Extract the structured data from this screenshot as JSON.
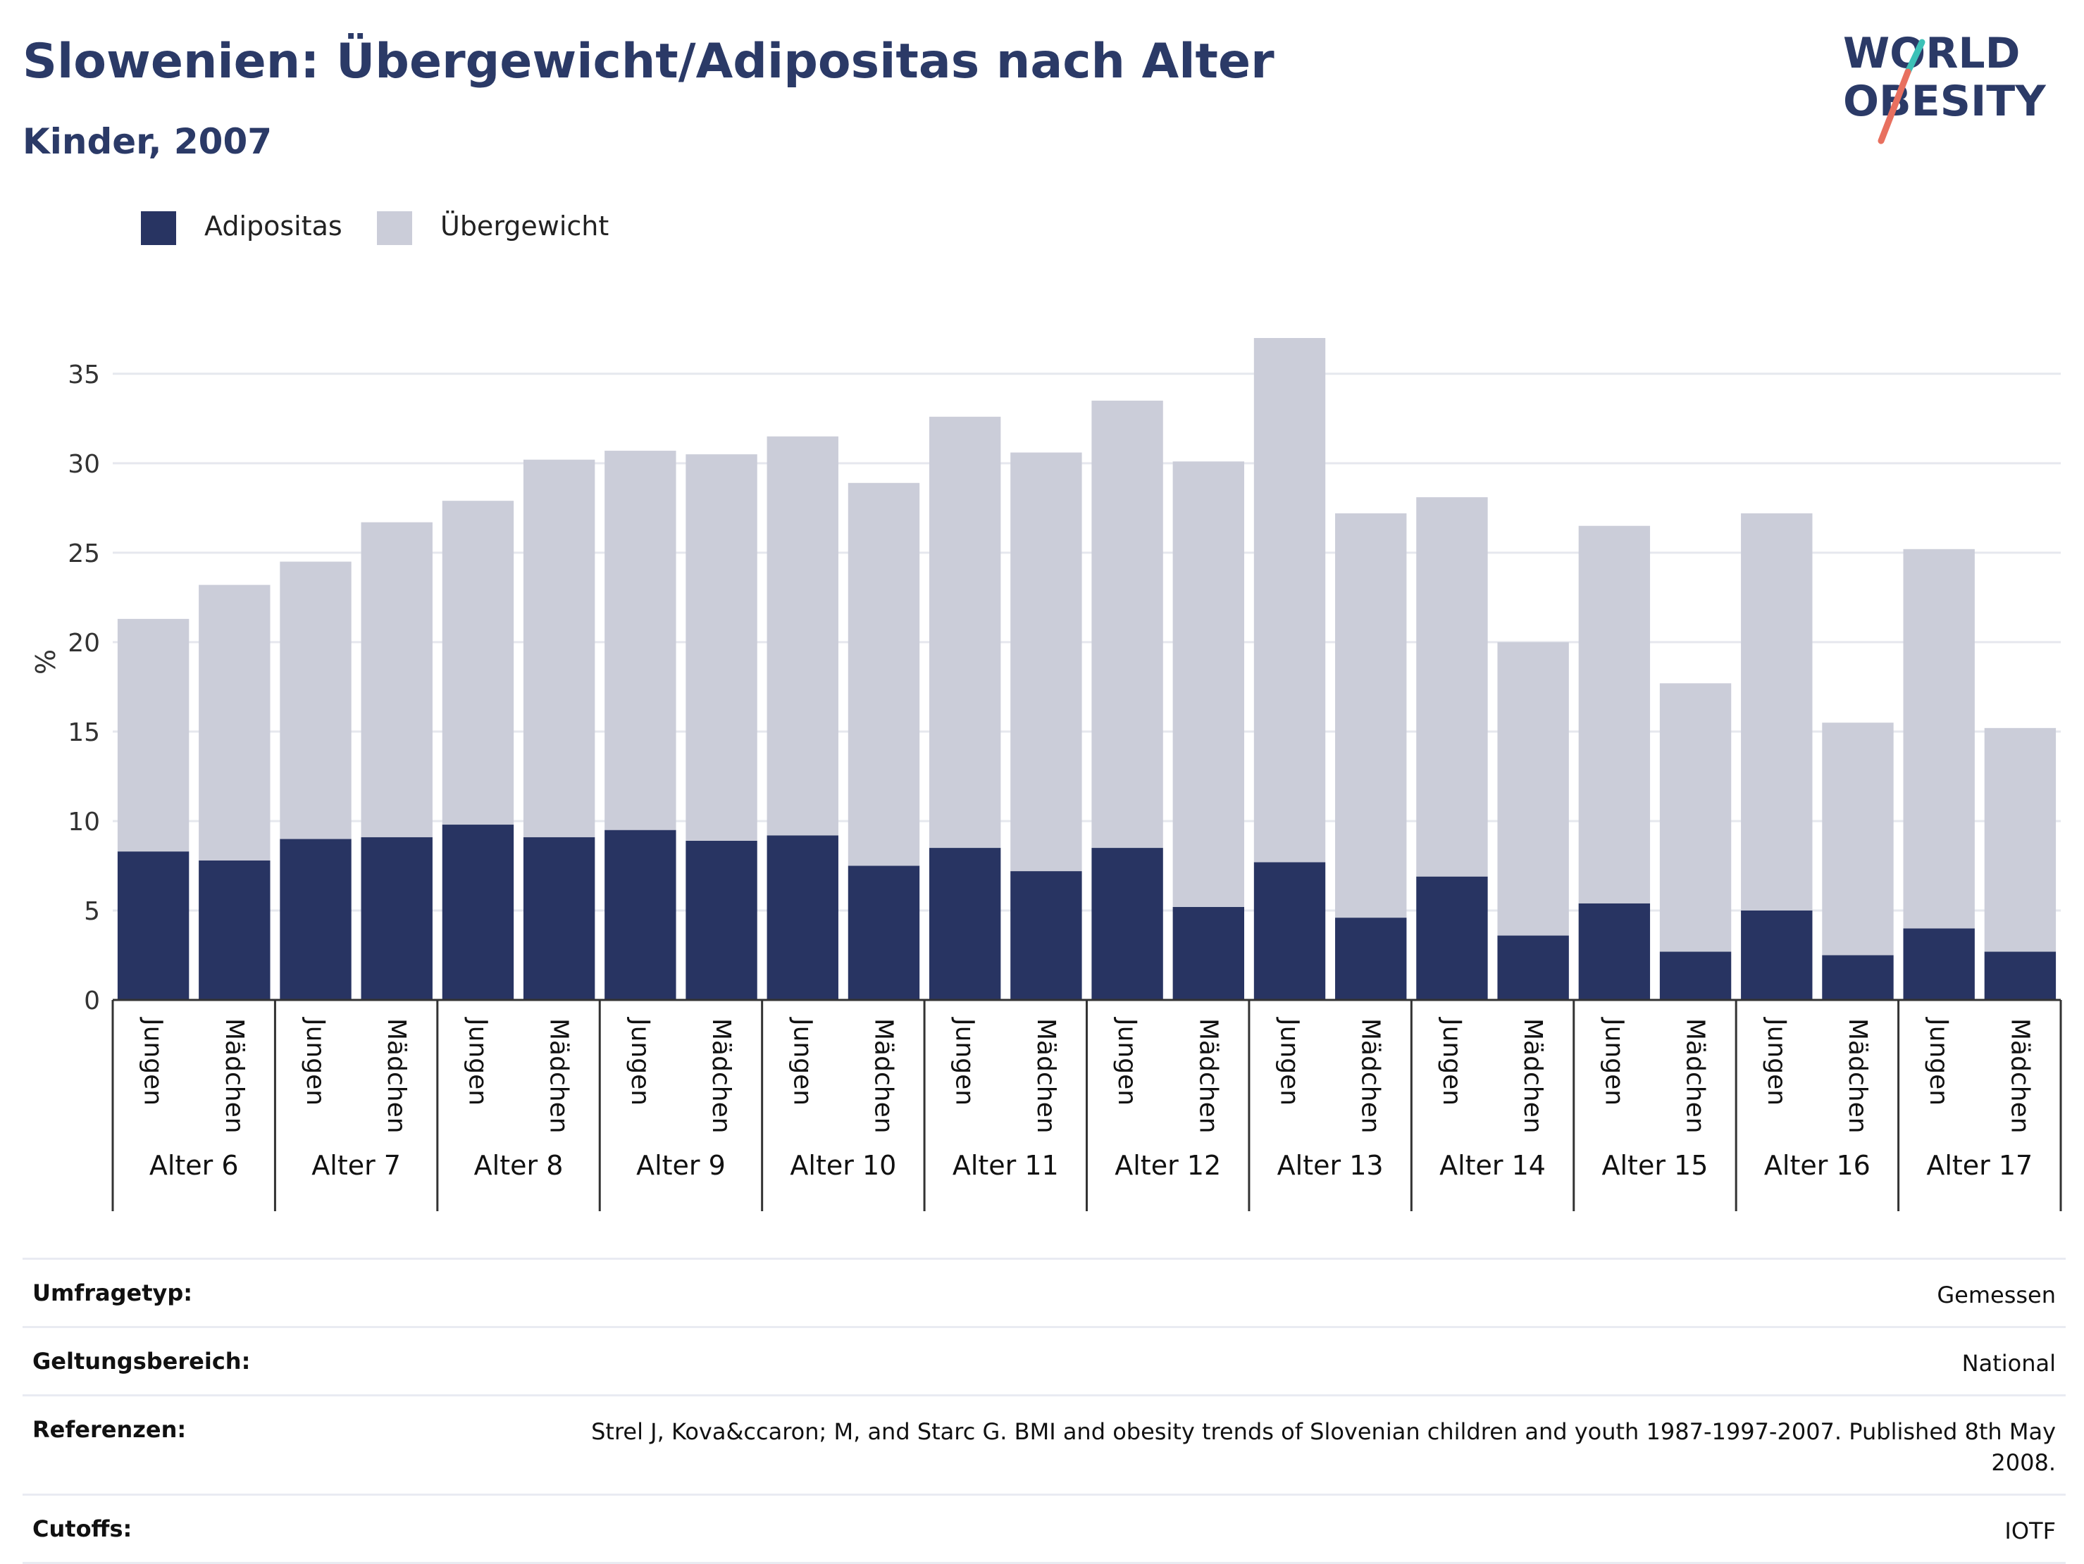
{
  "header": {
    "title": "Slowenien: Übergewicht/Adipositas nach Alter",
    "subtitle": "Kinder, 2007"
  },
  "logo": {
    "line1": "WORLD",
    "line2": "OBESITY"
  },
  "colors": {
    "adipositas": "#283462",
    "uebergewicht": "#cbcdd9",
    "accent_teal": "#3cc1b7",
    "accent_coral": "#e8705f",
    "text": "#2b3a67"
  },
  "legend": [
    {
      "label": "Adipositas",
      "color": "#283462"
    },
    {
      "label": "Übergewicht",
      "color": "#cbcdd9"
    }
  ],
  "chart_data": {
    "type": "bar",
    "stacked": true,
    "ylabel": "%",
    "ylim": [
      0,
      37
    ],
    "yticks": [
      0,
      5,
      10,
      15,
      20,
      25,
      30,
      35
    ],
    "grid": true,
    "legend_position": "top-left",
    "groups": [
      "Alter 6",
      "Alter 7",
      "Alter 8",
      "Alter 9",
      "Alter 10",
      "Alter 11",
      "Alter 12",
      "Alter 13",
      "Alter 14",
      "Alter 15",
      "Alter 16",
      "Alter 17"
    ],
    "subcategories": [
      "Jungen",
      "Mädchen"
    ],
    "series": [
      {
        "name": "Adipositas",
        "values": [
          8.3,
          7.8,
          9.0,
          9.1,
          9.8,
          9.1,
          9.5,
          8.9,
          9.2,
          7.5,
          8.5,
          7.2,
          8.5,
          5.2,
          7.7,
          4.6,
          6.9,
          3.6,
          5.4,
          2.7,
          5.0,
          2.5,
          4.0,
          2.7
        ]
      },
      {
        "name": "Übergewicht",
        "values": [
          13.0,
          15.4,
          15.5,
          17.6,
          18.1,
          21.1,
          21.2,
          21.6,
          22.3,
          21.4,
          24.1,
          23.4,
          25.0,
          24.9,
          29.4,
          22.6,
          21.2,
          16.4,
          21.1,
          15.0,
          22.2,
          13.0,
          21.2,
          12.5
        ]
      }
    ]
  },
  "meta": [
    {
      "label": "Umfragetyp:",
      "value": "Gemessen"
    },
    {
      "label": "Geltungsbereich:",
      "value": "National"
    },
    {
      "label": "Referenzen:",
      "value": "Strel J, Kova&ccaron; M, and Starc G. BMI and obesity trends of Slovenian children and youth 1987-1997-2007. Published 8th May 2008."
    },
    {
      "label": "Cutoffs:",
      "value": "IOTF"
    }
  ]
}
